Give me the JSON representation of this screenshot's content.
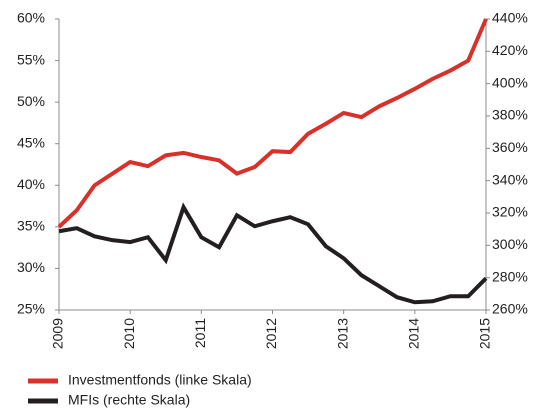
{
  "chart_data": {
    "type": "line",
    "x": [
      2009,
      2009.25,
      2009.5,
      2009.75,
      2010,
      2010.25,
      2010.5,
      2010.75,
      2011,
      2011.25,
      2011.5,
      2011.75,
      2012,
      2012.25,
      2012.5,
      2012.75,
      2013,
      2013.25,
      2013.5,
      2013.75,
      2014,
      2014.25,
      2014.5,
      2014.75,
      2015
    ],
    "xlim": [
      2009,
      2015
    ],
    "xticks": [
      2009,
      2010,
      2011,
      2012,
      2013,
      2014,
      2015
    ],
    "ylim": [
      25,
      60
    ],
    "yticks": [
      {
        "value": 25,
        "label": "25%"
      },
      {
        "value": 30,
        "label": "30%"
      },
      {
        "value": 35,
        "label": "35%"
      },
      {
        "value": 40,
        "label": "40%"
      },
      {
        "value": 45,
        "label": "45%"
      },
      {
        "value": 50,
        "label": "50%"
      },
      {
        "value": 55,
        "label": "55%"
      },
      {
        "value": 60,
        "label": "60%"
      }
    ],
    "y2lim": [
      260,
      440
    ],
    "y2ticks": [
      {
        "value": 260,
        "label": "260%"
      },
      {
        "value": 280,
        "label": "280%"
      },
      {
        "value": 300,
        "label": "300%"
      },
      {
        "value": 320,
        "label": "320%"
      },
      {
        "value": 340,
        "label": "340%"
      },
      {
        "value": 360,
        "label": "360%"
      },
      {
        "value": 380,
        "label": "380%"
      },
      {
        "value": 400,
        "label": "400%"
      },
      {
        "value": 420,
        "label": "420%"
      },
      {
        "value": 440,
        "label": "440%"
      }
    ],
    "grid": false,
    "legend": "bottom-left",
    "series": [
      {
        "name": "Investmentfonds (linke Skala)",
        "color": "#d7312a",
        "values": [
          35,
          37,
          40,
          41.4,
          42.8,
          42.3,
          43.6,
          43.9,
          43.4,
          43.0,
          41.4,
          42.2,
          44.1,
          44.0,
          46.2,
          47.4,
          48.7,
          48.2,
          49.5,
          50.5,
          51.6,
          52.8,
          53.8,
          55.0,
          60
        ]
      },
      {
        "name": "MFIs (rechte Skala)",
        "color": "#231f20",
        "axis": "y2",
        "values": [
          308.7,
          310.6,
          305.6,
          303.2,
          302,
          305,
          290.8,
          323.6,
          305,
          298.8,
          318.6,
          311.8,
          314.9,
          317.4,
          313,
          299.4,
          292,
          281.5,
          274.7,
          267.9,
          264.8,
          265.4,
          268.5,
          268.5,
          279.6
        ]
      }
    ]
  }
}
